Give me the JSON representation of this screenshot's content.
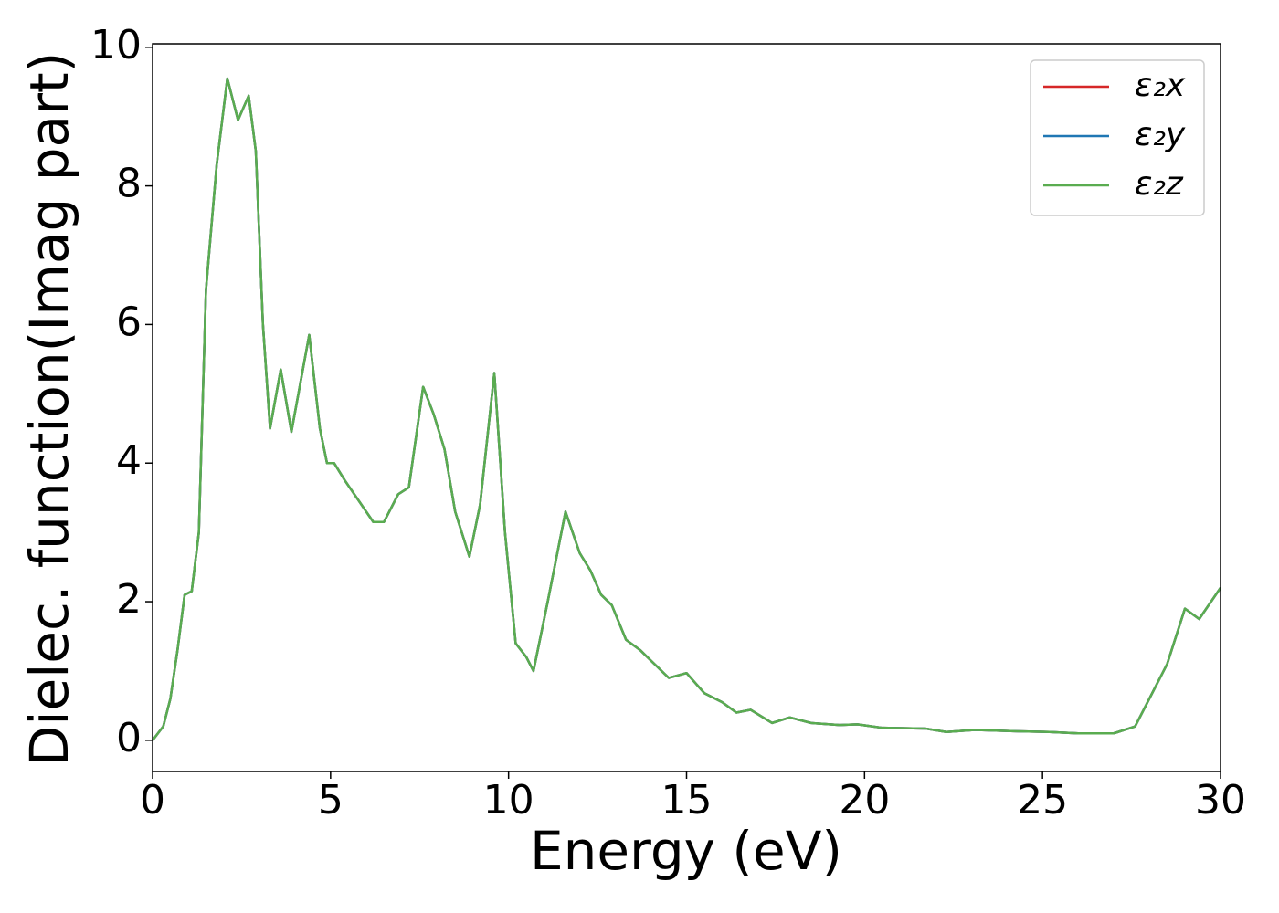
{
  "chart_data": {
    "type": "line",
    "xlabel": "Energy (eV)",
    "ylabel": "Dielec. function(Imag part)",
    "x": [
      0,
      0.3,
      0.5,
      0.7,
      0.9,
      1.1,
      1.3,
      1.5,
      1.8,
      2.1,
      2.4,
      2.7,
      2.9,
      3.1,
      3.3,
      3.6,
      3.9,
      4.4,
      4.7,
      4.9,
      5.1,
      5.4,
      5.8,
      6.2,
      6.5,
      6.9,
      7.2,
      7.6,
      7.9,
      8.2,
      8.5,
      8.9,
      9.2,
      9.6,
      9.9,
      10.2,
      10.5,
      10.7,
      11.1,
      11.6,
      12.0,
      12.3,
      12.6,
      12.9,
      13.3,
      13.7,
      14.1,
      14.5,
      15.0,
      15.5,
      16.0,
      16.4,
      16.8,
      17.4,
      17.9,
      18.5,
      19.3,
      19.8,
      20.5,
      21.7,
      22.3,
      23.1,
      24.3,
      25.2,
      26.0,
      27.0,
      27.6,
      28.0,
      28.5,
      29.0,
      29.4,
      30.0
    ],
    "series": [
      {
        "name": "ε₂x",
        "color": "#d62728",
        "values": [
          0,
          0.2,
          0.6,
          1.3,
          2.1,
          2.15,
          3.0,
          6.5,
          8.3,
          9.55,
          8.95,
          9.3,
          8.5,
          6.0,
          4.5,
          5.35,
          4.45,
          5.85,
          4.5,
          4.0,
          4.0,
          3.75,
          3.45,
          3.15,
          3.15,
          3.55,
          3.65,
          5.1,
          4.7,
          4.2,
          3.3,
          2.65,
          3.4,
          5.3,
          3.0,
          1.4,
          1.2,
          1.0,
          2.0,
          3.3,
          2.7,
          2.45,
          2.1,
          1.95,
          1.45,
          1.3,
          1.1,
          0.9,
          0.97,
          0.68,
          0.55,
          0.4,
          0.44,
          0.25,
          0.33,
          0.25,
          0.22,
          0.23,
          0.18,
          0.17,
          0.12,
          0.15,
          0.13,
          0.12,
          0.1,
          0.1,
          0.2,
          0.6,
          1.1,
          1.9,
          1.75,
          2.2
        ]
      },
      {
        "name": "ε₂y",
        "color": "#1f77b4",
        "values": [
          0,
          0.2,
          0.6,
          1.3,
          2.1,
          2.15,
          3.0,
          6.5,
          8.3,
          9.55,
          8.95,
          9.3,
          8.5,
          6.0,
          4.5,
          5.35,
          4.45,
          5.85,
          4.5,
          4.0,
          4.0,
          3.75,
          3.45,
          3.15,
          3.15,
          3.55,
          3.65,
          5.1,
          4.7,
          4.2,
          3.3,
          2.65,
          3.4,
          5.3,
          3.0,
          1.4,
          1.2,
          1.0,
          2.0,
          3.3,
          2.7,
          2.45,
          2.1,
          1.95,
          1.45,
          1.3,
          1.1,
          0.9,
          0.97,
          0.68,
          0.55,
          0.4,
          0.44,
          0.25,
          0.33,
          0.25,
          0.22,
          0.23,
          0.18,
          0.17,
          0.12,
          0.15,
          0.13,
          0.12,
          0.1,
          0.1,
          0.2,
          0.6,
          1.1,
          1.9,
          1.75,
          2.2
        ]
      },
      {
        "name": "ε₂z",
        "color": "#5aac50",
        "values": [
          0,
          0.2,
          0.6,
          1.3,
          2.1,
          2.15,
          3.0,
          6.5,
          8.3,
          9.55,
          8.95,
          9.3,
          8.5,
          6.0,
          4.5,
          5.35,
          4.45,
          5.85,
          4.5,
          4.0,
          4.0,
          3.75,
          3.45,
          3.15,
          3.15,
          3.55,
          3.65,
          5.1,
          4.7,
          4.2,
          3.3,
          2.65,
          3.4,
          5.3,
          3.0,
          1.4,
          1.2,
          1.0,
          2.0,
          3.3,
          2.7,
          2.45,
          2.1,
          1.95,
          1.45,
          1.3,
          1.1,
          0.9,
          0.97,
          0.68,
          0.55,
          0.4,
          0.44,
          0.25,
          0.33,
          0.25,
          0.22,
          0.23,
          0.18,
          0.17,
          0.12,
          0.15,
          0.13,
          0.12,
          0.1,
          0.1,
          0.2,
          0.6,
          1.1,
          1.9,
          1.75,
          2.2
        ]
      }
    ],
    "xlim": [
      0,
      30
    ],
    "xticks": [
      0,
      5,
      10,
      15,
      20,
      25,
      30
    ],
    "ylim": [
      -0.45,
      10.05
    ],
    "yticks": [
      0,
      2,
      4,
      6,
      8,
      10
    ],
    "grid": false,
    "legend": "upper right"
  }
}
